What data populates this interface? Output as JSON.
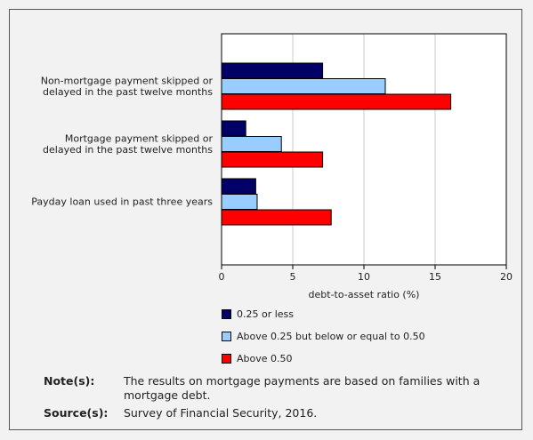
{
  "chart_data": {
    "type": "bar",
    "orientation": "horizontal",
    "categories": [
      [
        "Non-mortgage payment skipped or",
        "delayed in the past twelve months"
      ],
      [
        "Mortgage payment skipped or",
        "delayed in the past twelve months"
      ],
      [
        "Payday loan used in past three years"
      ]
    ],
    "series": [
      {
        "name": "0.25 or less",
        "color": "#000066",
        "values": [
          7.1,
          1.7,
          2.4
        ]
      },
      {
        "name": "Above 0.25 but below or equal to 0.50",
        "color": "#99ccff",
        "values": [
          11.5,
          4.2,
          2.5
        ]
      },
      {
        "name": "Above 0.50",
        "color": "#ff0000",
        "values": [
          16.1,
          7.1,
          7.7
        ]
      }
    ],
    "xlabel": "debt-to-asset ratio (%)",
    "xlim": [
      0,
      20
    ],
    "xticks": [
      "0",
      "5",
      "10",
      "15",
      "20"
    ],
    "grid": true,
    "legend_position": "bottom"
  },
  "notes": {
    "note_key": "Note(s):",
    "note_text": "The results on mortgage payments are based on families with a mortgage debt.",
    "source_key": "Source(s):",
    "source_text": "Survey of Financial Security, 2016."
  }
}
